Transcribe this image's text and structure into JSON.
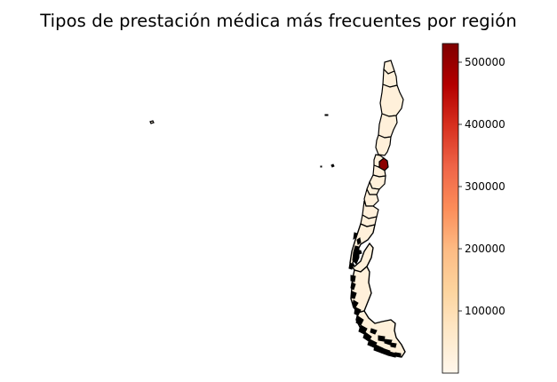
{
  "title": "Tipos de prestación médica más frecuentes por región",
  "colorbar": {
    "colormap": "OrRd",
    "range": [
      0,
      530000
    ],
    "ticks": [
      {
        "value": 100000,
        "label": "100000"
      },
      {
        "value": 200000,
        "label": "200000"
      },
      {
        "value": 300000,
        "label": "300000"
      },
      {
        "value": 400000,
        "label": "400000"
      },
      {
        "value": 500000,
        "label": "500000"
      }
    ],
    "stops": [
      "#fff7ec",
      "#fee8c8",
      "#fdd49e",
      "#fdbb84",
      "#fc8d59",
      "#ef6548",
      "#d7301f",
      "#b30000",
      "#7f0000"
    ]
  },
  "map": {
    "country": "Chile",
    "edge_color": "#000000",
    "highlight_region_color": "#8b0000",
    "base_region_color": "#fff0da"
  }
}
